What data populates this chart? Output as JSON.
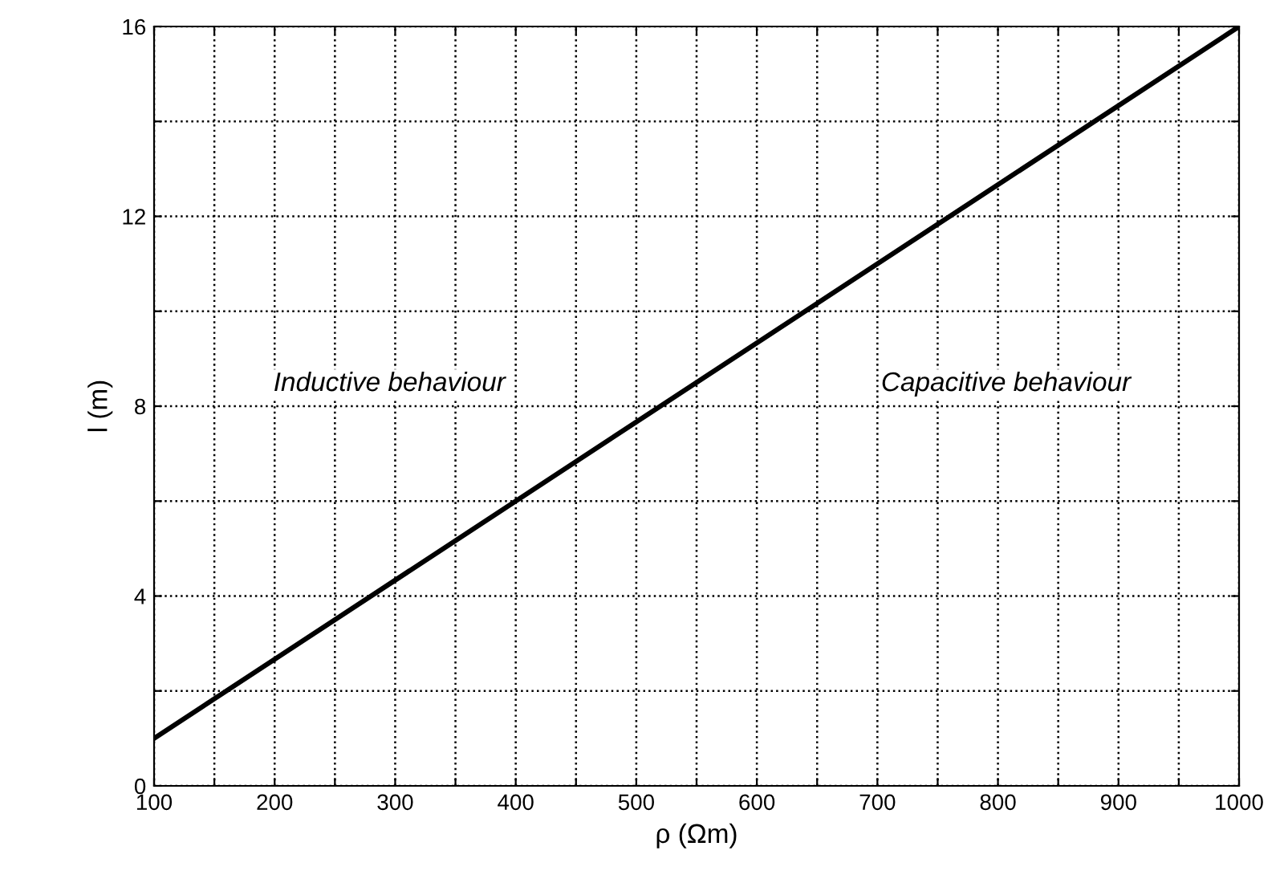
{
  "chart_data": {
    "type": "line",
    "xlabel": "ρ (Ωm)",
    "ylabel": "l (m)",
    "x": [
      100,
      1000
    ],
    "series": [
      {
        "color": "#000000",
        "values": [
          1,
          16
        ]
      }
    ],
    "xlim": [
      100,
      1000
    ],
    "ylim": [
      0,
      16
    ],
    "xticks": [
      100,
      {
        "value": 150,
        "label": null
      },
      200,
      {
        "value": 250,
        "label": null
      },
      300,
      {
        "value": 350,
        "label": null
      },
      400,
      {
        "value": 450,
        "label": null
      },
      500,
      {
        "value": 550,
        "label": null
      },
      600,
      {
        "value": 650,
        "label": null
      },
      700,
      {
        "value": 750,
        "label": null
      },
      800,
      {
        "value": 850,
        "label": null
      },
      900,
      {
        "value": 950,
        "label": null
      },
      1000
    ],
    "yticks": [
      0,
      {
        "value": 2,
        "label": null
      },
      4,
      {
        "value": 6,
        "label": null
      },
      8,
      {
        "value": 10,
        "label": null
      },
      12,
      {
        "value": 14,
        "label": null
      },
      16
    ],
    "grid": true,
    "marker": "none",
    "line_style": "solid",
    "legend": false,
    "annotations": [
      "Inductive behaviour",
      "Capacitive behaviour"
    ]
  }
}
